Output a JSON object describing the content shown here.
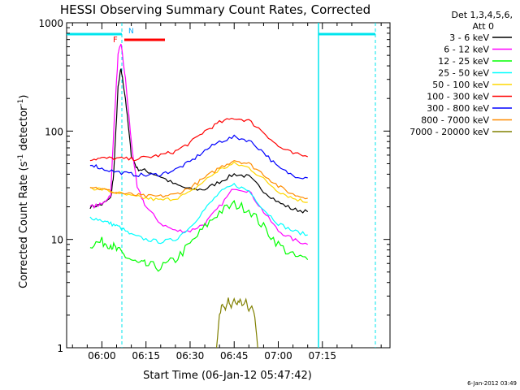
{
  "chart_data": {
    "type": "line",
    "title": "HESSI Observing Summary Count Rates, Corrected",
    "xlabel": "Start Time (06-Jan-12 05:47:42)",
    "ylabel": "Corrected Count Rate (s",
    "ylabel_sup1": "-1",
    "ylabel_mid": " detector",
    "ylabel_sup2": "-1",
    "ylabel_end": ")",
    "y_scale": "log",
    "ylim": [
      1,
      1000
    ],
    "xlim_minutes": [
      -12,
      98
    ],
    "x_tick_labels": [
      {
        "t": 0,
        "label": "06:00"
      },
      {
        "t": 15,
        "label": "06:15"
      },
      {
        "t": 30,
        "label": "06:30"
      },
      {
        "t": 45,
        "label": "06:45"
      },
      {
        "t": 60,
        "label": "07:00"
      },
      {
        "t": 75,
        "label": "07:15"
      }
    ],
    "y_tick_labels": [
      {
        "v": 1,
        "label": "1"
      },
      {
        "v": 10,
        "label": "10"
      },
      {
        "v": 100,
        "label": "100"
      },
      {
        "v": 1000,
        "label": "1000"
      }
    ],
    "legend_header": [
      "Det 1,3,4,5,6,",
      "Att 0"
    ],
    "legend_position": "right",
    "series": [
      {
        "name": "3 - 6 keV",
        "color": "#000000",
        "points": [
          [
            -4,
            20
          ],
          [
            0,
            21
          ],
          [
            3,
            24
          ],
          [
            4,
            40
          ],
          [
            5.5,
            250
          ],
          [
            6.5,
            380
          ],
          [
            8,
            200
          ],
          [
            10,
            60
          ],
          [
            12,
            45
          ],
          [
            15,
            43
          ],
          [
            20,
            38
          ],
          [
            25,
            32
          ],
          [
            30,
            29
          ],
          [
            35,
            29
          ],
          [
            40,
            34
          ],
          [
            45,
            40
          ],
          [
            50,
            38
          ],
          [
            55,
            28
          ],
          [
            60,
            22
          ],
          [
            65,
            19
          ],
          [
            70,
            18
          ]
        ]
      },
      {
        "name": "6 - 12 keV",
        "color": "#ff00ff",
        "points": [
          [
            -4,
            20
          ],
          [
            0,
            21
          ],
          [
            3,
            26
          ],
          [
            4,
            100
          ],
          [
            5.5,
            500
          ],
          [
            6.5,
            650
          ],
          [
            8,
            300
          ],
          [
            10,
            80
          ],
          [
            12,
            30
          ],
          [
            15,
            20
          ],
          [
            20,
            14
          ],
          [
            25,
            12
          ],
          [
            30,
            12
          ],
          [
            35,
            14
          ],
          [
            40,
            20
          ],
          [
            45,
            30
          ],
          [
            50,
            28
          ],
          [
            55,
            18
          ],
          [
            60,
            12
          ],
          [
            65,
            10
          ],
          [
            70,
            9
          ]
        ]
      },
      {
        "name": "12 - 25 keV",
        "color": "#00ff00",
        "points": [
          [
            -4,
            9
          ],
          [
            0,
            9.5
          ],
          [
            3,
            9
          ],
          [
            5,
            8
          ],
          [
            8,
            7
          ],
          [
            12,
            6
          ],
          [
            15,
            5.8
          ],
          [
            20,
            5.5
          ],
          [
            25,
            6.5
          ],
          [
            30,
            9
          ],
          [
            35,
            13
          ],
          [
            40,
            18
          ],
          [
            45,
            21
          ],
          [
            50,
            19
          ],
          [
            55,
            13
          ],
          [
            60,
            9
          ],
          [
            65,
            7
          ],
          [
            70,
            6.5
          ]
        ]
      },
      {
        "name": "25 - 50 keV",
        "color": "#00ffff",
        "points": [
          [
            -4,
            16
          ],
          [
            0,
            15
          ],
          [
            3,
            14
          ],
          [
            6,
            13
          ],
          [
            10,
            11
          ],
          [
            15,
            10
          ],
          [
            20,
            9.5
          ],
          [
            25,
            10
          ],
          [
            30,
            13
          ],
          [
            35,
            19
          ],
          [
            40,
            27
          ],
          [
            45,
            32
          ],
          [
            50,
            28
          ],
          [
            55,
            19
          ],
          [
            60,
            14
          ],
          [
            65,
            12
          ],
          [
            70,
            11
          ]
        ]
      },
      {
        "name": "50 - 100 keV",
        "color": "#ffd700",
        "points": [
          [
            -4,
            30
          ],
          [
            0,
            29
          ],
          [
            5,
            27
          ],
          [
            10,
            25
          ],
          [
            15,
            24
          ],
          [
            20,
            23
          ],
          [
            25,
            24
          ],
          [
            30,
            27
          ],
          [
            35,
            35
          ],
          [
            40,
            44
          ],
          [
            45,
            50
          ],
          [
            50,
            46
          ],
          [
            55,
            36
          ],
          [
            60,
            28
          ],
          [
            65,
            24
          ],
          [
            70,
            22
          ]
        ]
      },
      {
        "name": "100 - 300 keV",
        "color": "#ff0000",
        "points": [
          [
            -4,
            55
          ],
          [
            0,
            56
          ],
          [
            5,
            56
          ],
          [
            10,
            55
          ],
          [
            15,
            57
          ],
          [
            20,
            60
          ],
          [
            25,
            65
          ],
          [
            30,
            78
          ],
          [
            35,
            100
          ],
          [
            40,
            120
          ],
          [
            45,
            132
          ],
          [
            50,
            125
          ],
          [
            55,
            98
          ],
          [
            60,
            72
          ],
          [
            65,
            62
          ],
          [
            70,
            58
          ]
        ]
      },
      {
        "name": "300 - 800 keV",
        "color": "#0000ff",
        "points": [
          [
            -4,
            50
          ],
          [
            0,
            45
          ],
          [
            5,
            42
          ],
          [
            10,
            40
          ],
          [
            15,
            39
          ],
          [
            20,
            40
          ],
          [
            25,
            44
          ],
          [
            30,
            52
          ],
          [
            35,
            66
          ],
          [
            40,
            80
          ],
          [
            45,
            88
          ],
          [
            50,
            82
          ],
          [
            55,
            64
          ],
          [
            60,
            46
          ],
          [
            65,
            39
          ],
          [
            70,
            37
          ]
        ]
      },
      {
        "name": "800 - 7000 keV",
        "color": "#ff8c00",
        "points": [
          [
            -4,
            31
          ],
          [
            0,
            29
          ],
          [
            5,
            27
          ],
          [
            10,
            26
          ],
          [
            15,
            25
          ],
          [
            20,
            25
          ],
          [
            25,
            26
          ],
          [
            30,
            30
          ],
          [
            35,
            37
          ],
          [
            40,
            46
          ],
          [
            45,
            54
          ],
          [
            50,
            50
          ],
          [
            55,
            40
          ],
          [
            60,
            31
          ],
          [
            65,
            26
          ],
          [
            70,
            24
          ]
        ]
      },
      {
        "name": "7000 - 20000 keV",
        "color": "#808000",
        "points": [
          [
            39,
            1
          ],
          [
            40,
            2
          ],
          [
            41,
            2.6
          ],
          [
            42,
            2.2
          ],
          [
            43,
            2.8
          ],
          [
            44,
            2.4
          ],
          [
            45,
            2.9
          ],
          [
            46,
            2.5
          ],
          [
            47,
            2.8
          ],
          [
            48,
            2.4
          ],
          [
            49,
            2.7
          ],
          [
            50,
            2.2
          ],
          [
            51,
            2.5
          ],
          [
            52,
            1.9
          ],
          [
            53,
            1
          ]
        ]
      }
    ],
    "markers": {
      "flag_F": "F",
      "flag_N": "N"
    },
    "timestamp": "6-Jan-2012 03:49"
  }
}
